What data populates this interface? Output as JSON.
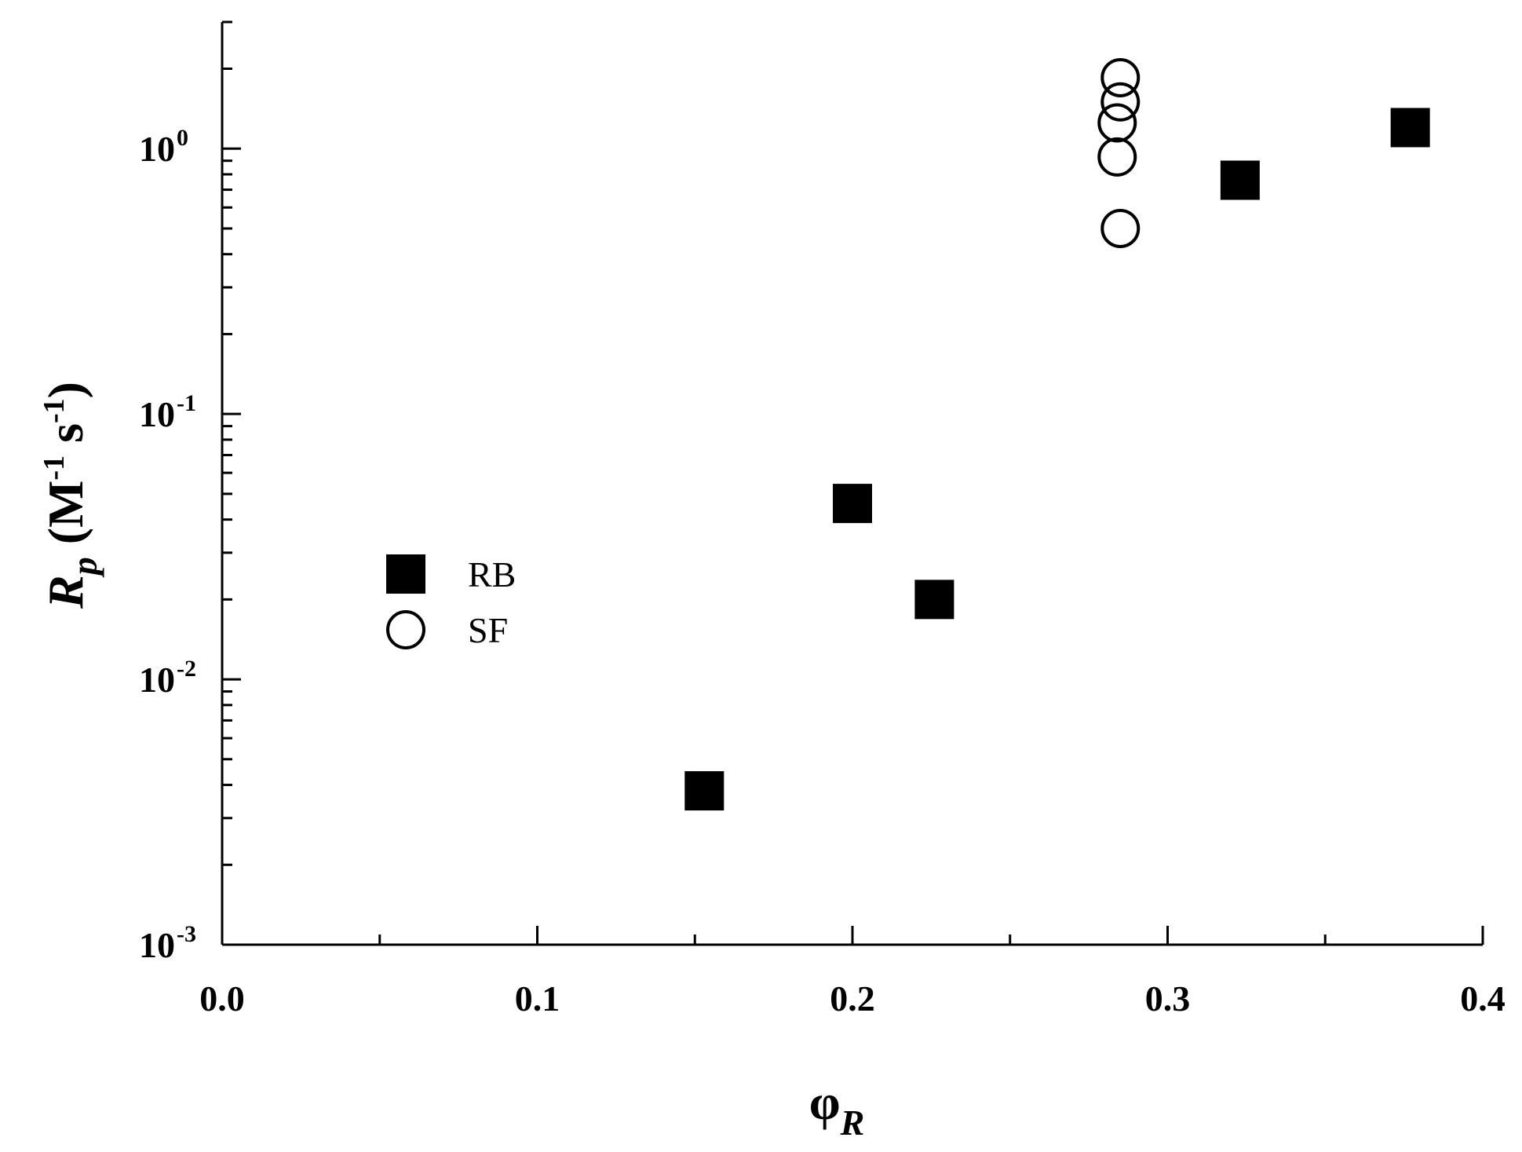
{
  "chart_data": {
    "type": "scatter",
    "title": "",
    "x_axis": {
      "label_main": "φ",
      "label_sub": "R",
      "range": [
        0.0,
        0.4
      ],
      "scale": "linear",
      "ticks": [
        {
          "value": 0.0,
          "label": "0.0"
        },
        {
          "value": 0.1,
          "label": "0.1"
        },
        {
          "value": 0.2,
          "label": "0.2"
        },
        {
          "value": 0.3,
          "label": "0.3"
        },
        {
          "value": 0.4,
          "label": "0.4"
        }
      ]
    },
    "y_axis": {
      "label_main": "R",
      "label_sub": "p",
      "label_unit_open": " (M",
      "label_unit_exp1": "-1",
      "label_unit_mid": " s",
      "label_unit_exp2": "-1",
      "label_unit_close": ")",
      "range": [
        0.001,
        3.0
      ],
      "scale": "log",
      "ticks": [
        {
          "value": 0.001,
          "base": "10",
          "exp": "-3"
        },
        {
          "value": 0.01,
          "base": "10",
          "exp": "-2"
        },
        {
          "value": 0.1,
          "base": "10",
          "exp": "-1"
        },
        {
          "value": 1,
          "base": "10",
          "exp": "0"
        }
      ]
    },
    "grid": false,
    "legend_position": "middle-left",
    "series": [
      {
        "name": "RB",
        "marker": "filled-square",
        "color": "#000000",
        "points": [
          {
            "x": 0.153,
            "y": 0.0038
          },
          {
            "x": 0.2,
            "y": 0.046
          },
          {
            "x": 0.226,
            "y": 0.02
          },
          {
            "x": 0.323,
            "y": 0.76
          },
          {
            "x": 0.377,
            "y": 1.2
          }
        ]
      },
      {
        "name": "SF",
        "marker": "open-circle",
        "color": "#000000",
        "points": [
          {
            "x": 0.285,
            "y": 1.85
          },
          {
            "x": 0.285,
            "y": 1.5
          },
          {
            "x": 0.284,
            "y": 1.25
          },
          {
            "x": 0.284,
            "y": 0.93
          },
          {
            "x": 0.285,
            "y": 0.5
          }
        ]
      }
    ]
  }
}
